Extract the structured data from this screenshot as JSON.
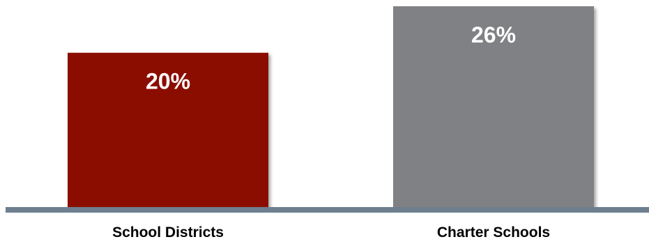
{
  "chart_data": {
    "type": "bar",
    "categories": [
      "School Districts",
      "Charter Schools"
    ],
    "values": [
      20,
      26
    ],
    "value_labels": [
      "20%",
      "26%"
    ],
    "colors": [
      "#8b0f00",
      "#808184"
    ],
    "baseline_color": "#6e7f8f",
    "title": "",
    "xlabel": "",
    "ylabel": "",
    "ylim": [
      0,
      26
    ],
    "grid": false,
    "legend": "none"
  }
}
